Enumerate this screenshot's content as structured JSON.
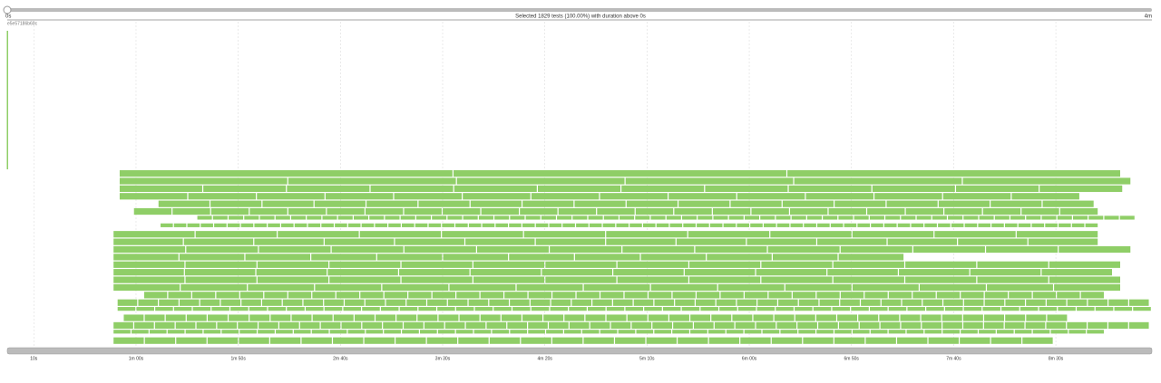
{
  "header": {
    "range_start": "0s",
    "range_end": "4m",
    "summary": "Selected 1829 tests (100.00%) with duration above 0s",
    "host": "e5e57186b60c"
  },
  "timeline": {
    "xlim": [
      -3,
      557
    ],
    "xticks": [
      {
        "value": 10,
        "label": "10s"
      },
      {
        "value": 60,
        "label": "1m 00s"
      },
      {
        "value": 110,
        "label": "1m 50s"
      },
      {
        "value": 160,
        "label": "2m 40s"
      },
      {
        "value": 210,
        "label": "3m 30s"
      },
      {
        "value": 260,
        "label": "4m 20s"
      },
      {
        "value": 310,
        "label": "5m 10s"
      },
      {
        "value": 360,
        "label": "6m 00s"
      },
      {
        "value": 410,
        "label": "6m 50s"
      },
      {
        "value": 460,
        "label": "7m 40s"
      },
      {
        "value": 510,
        "label": "8m 30s"
      }
    ],
    "color": "#8fce67",
    "lanes": [
      [
        52,
        542,
        3
      ],
      [
        52,
        547,
        6
      ],
      [
        52,
        543,
        12
      ],
      [
        52,
        522,
        14
      ],
      [
        71,
        529,
        18
      ],
      [
        59,
        531,
        25
      ],
      [
        90,
        549,
        60
      ],
      [
        72,
        531,
        70
      ],
      [
        49,
        531,
        12
      ],
      [
        49,
        531,
        14
      ],
      [
        49,
        547,
        14
      ],
      [
        49,
        436,
        12
      ],
      [
        49,
        542,
        14
      ],
      [
        49,
        538,
        14
      ],
      [
        49,
        542,
        14
      ],
      [
        49,
        542,
        15
      ],
      [
        64,
        534,
        40
      ],
      [
        51,
        556,
        50
      ],
      [
        51,
        557,
        55
      ],
      [
        54,
        516,
        45
      ],
      [
        49,
        556,
        50
      ],
      [
        49,
        534,
        55
      ],
      [
        49,
        509,
        30
      ]
    ]
  }
}
